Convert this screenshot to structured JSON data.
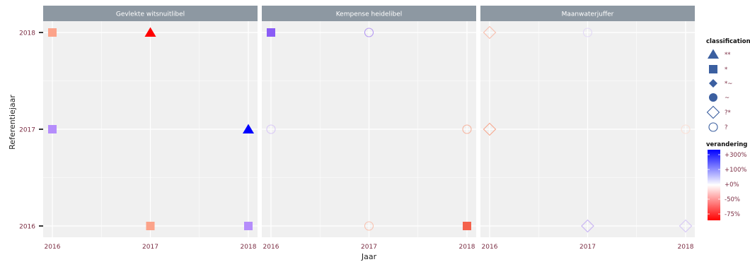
{
  "chart_data": {
    "type": "scatter",
    "xlabel": "Jaar",
    "ylabel": "Referentiejaar",
    "x_ticks": [
      "2016",
      "2017",
      "2018"
    ],
    "y_ticks": [
      "2016",
      "2017",
      "2018"
    ],
    "xlim": [
      2016,
      2018
    ],
    "ylim": [
      2016,
      2018
    ],
    "grid": true,
    "panels": [
      {
        "name": "Gevlekte witsnuitlibel",
        "points": [
          {
            "x": 2016,
            "y": 2018,
            "shape": "square",
            "classification": "*",
            "color": "#fca38a"
          },
          {
            "x": 2017,
            "y": 2018,
            "shape": "triangle",
            "classification": "**",
            "color": "#ff0000"
          },
          {
            "x": 2016,
            "y": 2017,
            "shape": "square",
            "classification": "*",
            "color": "#b58dfb"
          },
          {
            "x": 2018,
            "y": 2017,
            "shape": "triangle",
            "classification": "**",
            "color": "#0000ff"
          },
          {
            "x": 2017,
            "y": 2016,
            "shape": "square",
            "classification": "*",
            "color": "#fca38a"
          },
          {
            "x": 2018,
            "y": 2016,
            "shape": "square",
            "classification": "*",
            "color": "#b58dfb"
          }
        ]
      },
      {
        "name": "Kempense heidelibel",
        "points": [
          {
            "x": 2016,
            "y": 2018,
            "shape": "square",
            "classification": "*",
            "color": "#8a5cf6"
          },
          {
            "x": 2017,
            "y": 2018,
            "shape": "circle-open",
            "classification": "?",
            "color": "#b497f3"
          },
          {
            "x": 2016,
            "y": 2017,
            "shape": "circle-open",
            "classification": "?",
            "color": "#d9c9f7"
          },
          {
            "x": 2018,
            "y": 2017,
            "shape": "circle-open",
            "classification": "?",
            "color": "#f7b49e"
          },
          {
            "x": 2017,
            "y": 2016,
            "shape": "circle-open",
            "classification": "?",
            "color": "#f9c2b0"
          },
          {
            "x": 2018,
            "y": 2016,
            "shape": "square",
            "classification": "*",
            "color": "#f4624c"
          }
        ]
      },
      {
        "name": "Maanwaterjuffer",
        "points": [
          {
            "x": 2016,
            "y": 2018,
            "shape": "diamond-open",
            "classification": "?*",
            "color": "#f9bfae"
          },
          {
            "x": 2017,
            "y": 2018,
            "shape": "circle-open",
            "classification": "?",
            "color": "#e3d9f6"
          },
          {
            "x": 2016,
            "y": 2017,
            "shape": "diamond-open",
            "classification": "?*",
            "color": "#f7a98f"
          },
          {
            "x": 2018,
            "y": 2017,
            "shape": "circle-open",
            "classification": "?",
            "color": "#fbe0d6"
          },
          {
            "x": 2017,
            "y": 2016,
            "shape": "diamond-open",
            "classification": "?*",
            "color": "#c7b1f5"
          },
          {
            "x": 2018,
            "y": 2016,
            "shape": "diamond-open",
            "classification": "?*",
            "color": "#d7c8f6"
          }
        ]
      }
    ],
    "legend": {
      "position": "right",
      "shape_title": "classification",
      "shape_items": [
        {
          "label": "**",
          "shape": "triangle"
        },
        {
          "label": "*",
          "shape": "square"
        },
        {
          "label": "*~",
          "shape": "diamond"
        },
        {
          "label": "~",
          "shape": "circle"
        },
        {
          "label": "?*",
          "shape": "diamond-open"
        },
        {
          "label": "?",
          "shape": "circle-open"
        }
      ],
      "shape_color": "#3b5fa0",
      "color_title": "verandering",
      "color_labels": [
        "+300%",
        "+100%",
        "+0%",
        "-50%",
        "-75%"
      ],
      "color_stops": [
        "#0000ff",
        "#ffffff",
        "#ff0000"
      ]
    },
    "colors": {
      "panel_bg": "#f0f0f0",
      "strip_bg": "#8d98a2",
      "grid": "#ffffff",
      "tick_text": "#7b2d43"
    }
  }
}
